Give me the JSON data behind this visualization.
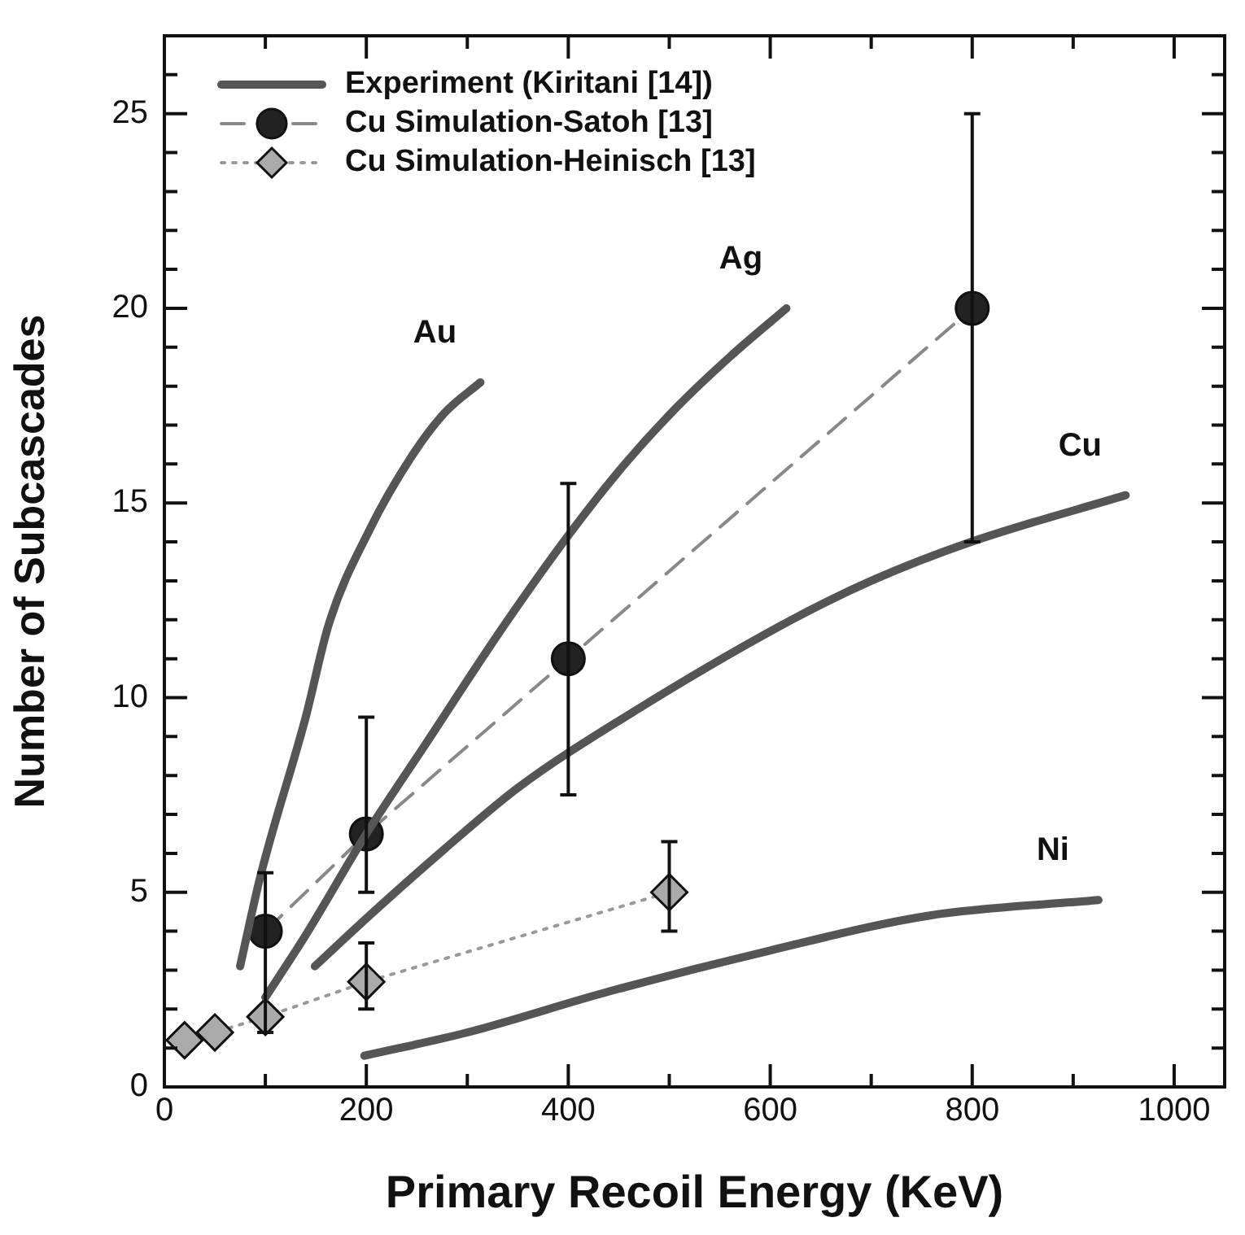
{
  "chart_data": {
    "type": "line",
    "xlabel": "Primary Recoil Energy (KeV)",
    "ylabel": "Number of Subcascades",
    "xlim": [
      0,
      1050
    ],
    "ylim": [
      0,
      27
    ],
    "xticks": [
      0,
      {
        "value": 100,
        "label": null
      },
      200,
      {
        "value": 300,
        "label": null
      },
      400,
      {
        "value": 500,
        "label": null
      },
      600,
      {
        "value": 700,
        "label": null
      },
      800,
      {
        "value": 900,
        "label": null
      },
      1000
    ],
    "yticks": [
      0,
      {
        "value": 1,
        "label": null
      },
      {
        "value": 2,
        "label": null
      },
      {
        "value": 3,
        "label": null
      },
      {
        "value": 4,
        "label": null
      },
      5,
      {
        "value": 6,
        "label": null
      },
      {
        "value": 7,
        "label": null
      },
      {
        "value": 8,
        "label": null
      },
      {
        "value": 9,
        "label": null
      },
      10,
      {
        "value": 11,
        "label": null
      },
      {
        "value": 12,
        "label": null
      },
      {
        "value": 13,
        "label": null
      },
      {
        "value": 14,
        "label": null
      },
      15,
      {
        "value": 16,
        "label": null
      },
      {
        "value": 17,
        "label": null
      },
      {
        "value": 18,
        "label": null
      },
      {
        "value": 19,
        "label": null
      },
      20,
      {
        "value": 21,
        "label": null
      },
      {
        "value": 22,
        "label": null
      },
      {
        "value": 23,
        "label": null
      },
      {
        "value": 24,
        "label": null
      },
      25,
      {
        "value": 26,
        "label": null
      }
    ],
    "grid": false,
    "legend": "top left",
    "legend_title": "Experiment (Kiritani [14])",
    "series": [
      {
        "name": "Au",
        "color": "#555555",
        "marker": "none",
        "line_style": "solid",
        "x": [
          75,
          95,
          140,
          163,
          203,
          245,
          277,
          313
        ],
        "values": [
          3.1,
          5.4,
          9.5,
          11.9,
          14.3,
          16.2,
          17.3,
          18.1
        ]
      },
      {
        "name": "Ag",
        "color": "#555555",
        "marker": "none",
        "line_style": "solid",
        "x": [
          100,
          140,
          200,
          256,
          335,
          401,
          456,
          509,
          562,
          616
        ],
        "values": [
          2.3,
          3.9,
          6.5,
          8.7,
          11.8,
          14.2,
          16.0,
          17.5,
          18.8,
          20.0
        ]
      },
      {
        "name": "Cu",
        "color": "#555555",
        "marker": "none",
        "line_style": "solid",
        "x": [
          149,
          203,
          277,
          351,
          456,
          614,
          700,
          799,
          952
        ],
        "values": [
          3.1,
          4.4,
          6.1,
          7.7,
          9.5,
          11.9,
          13.0,
          14.0,
          15.2
        ]
      },
      {
        "name": "Ni",
        "color": "#555555",
        "marker": "none",
        "line_style": "solid",
        "x": [
          198,
          300,
          440,
          599,
          757,
          925
        ],
        "values": [
          0.8,
          1.4,
          2.45,
          3.5,
          4.4,
          4.8
        ]
      },
      {
        "name": "Cu Simulation-Satoh [13]",
        "color": "#222222",
        "marker": "circle",
        "line_style": "dashed",
        "x": [
          100,
          200,
          400,
          800
        ],
        "values": [
          4.0,
          6.5,
          11.0,
          20.0
        ],
        "errors": [
          [
            1.4,
            5.5
          ],
          [
            5.0,
            9.5
          ],
          [
            7.5,
            15.5
          ],
          [
            14.0,
            25.0
          ]
        ]
      },
      {
        "name": "Cu Simulation-Heinisch [13]",
        "color": "#aaaaaa",
        "marker": "diamond",
        "line_style": "dotted",
        "x": [
          20,
          50,
          100,
          200,
          500
        ],
        "values": [
          1.2,
          1.4,
          1.8,
          2.7,
          5.0
        ],
        "errors": [
          null,
          null,
          null,
          [
            2.0,
            3.7
          ],
          [
            4.0,
            6.3
          ]
        ]
      }
    ]
  }
}
